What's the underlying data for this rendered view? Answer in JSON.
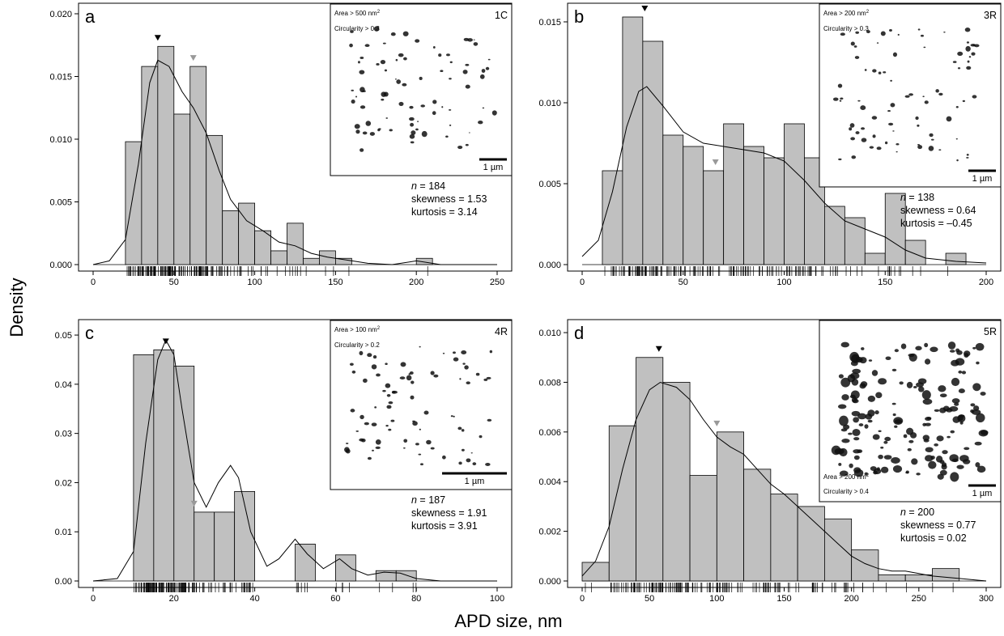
{
  "figure": {
    "ylabel": "Density",
    "xlabel": "APD size, nm"
  },
  "chart_data": [
    {
      "type": "bar",
      "panel": "a",
      "sample": "1C",
      "bin_width": 10,
      "bin_start": 20,
      "values": [
        0.0098,
        0.0158,
        0.0174,
        0.012,
        0.0158,
        0.0103,
        0.0043,
        0.0049,
        0.0027,
        0.0011,
        0.0033,
        0.0005,
        0.0011,
        0.0005,
        0.0,
        0.0,
        0.0,
        0.0,
        0.0005
      ],
      "xlim": [
        0,
        250
      ],
      "xticks": [
        0,
        50,
        100,
        150,
        200,
        250
      ],
      "ylim": [
        0,
        0.02
      ],
      "yticks": [
        "0.000",
        "0.005",
        "0.010",
        "0.015",
        "0.020"
      ],
      "mode": 40,
      "mean": 62,
      "density_curve": [
        [
          0,
          0
        ],
        [
          10,
          0.0003
        ],
        [
          20,
          0.002
        ],
        [
          28,
          0.008
        ],
        [
          35,
          0.0145
        ],
        [
          40,
          0.0163
        ],
        [
          47,
          0.0158
        ],
        [
          55,
          0.0138
        ],
        [
          62,
          0.0125
        ],
        [
          70,
          0.0105
        ],
        [
          78,
          0.0075
        ],
        [
          85,
          0.0052
        ],
        [
          95,
          0.0035
        ],
        [
          105,
          0.0027
        ],
        [
          115,
          0.0018
        ],
        [
          125,
          0.0015
        ],
        [
          135,
          0.0009
        ],
        [
          145,
          0.0006
        ],
        [
          155,
          0.0004
        ],
        [
          170,
          0.0001
        ],
        [
          185,
          0.0
        ],
        [
          200,
          0.0003
        ],
        [
          205,
          0.0002
        ],
        [
          215,
          0.0
        ],
        [
          250,
          0.0
        ]
      ],
      "inset": {
        "filter1": "Area > 500 nm",
        "filter1_unit": "2",
        "filter2": "Circularity > 0.3",
        "scale": "1 µm"
      },
      "stats": {
        "n_label": "n",
        "n_value": " = 184",
        "skewness": "skewness = 1.53",
        "kurtosis": "kurtosis = 3.14"
      }
    },
    {
      "type": "bar",
      "panel": "b",
      "sample": "3R",
      "bin_width": 10,
      "bin_start": 10,
      "values": [
        0.0058,
        0.0153,
        0.0138,
        0.008,
        0.0073,
        0.0058,
        0.0087,
        0.0073,
        0.0066,
        0.0087,
        0.0066,
        0.0036,
        0.0029,
        0.0007,
        0.0044,
        0.0015,
        0.0,
        0.0007
      ],
      "xlim": [
        0,
        200
      ],
      "xticks": [
        0,
        50,
        100,
        150,
        200
      ],
      "ylim": [
        0,
        0.0155
      ],
      "yticks": [
        "0.000",
        "0.005",
        "0.010",
        "0.015"
      ],
      "mode": 31,
      "mean": 66,
      "density_curve": [
        [
          0,
          0.0005
        ],
        [
          8,
          0.0015
        ],
        [
          15,
          0.0045
        ],
        [
          22,
          0.0085
        ],
        [
          28,
          0.0107
        ],
        [
          32,
          0.011
        ],
        [
          40,
          0.0098
        ],
        [
          50,
          0.0082
        ],
        [
          60,
          0.0075
        ],
        [
          70,
          0.0073
        ],
        [
          80,
          0.0071
        ],
        [
          90,
          0.0069
        ],
        [
          100,
          0.0064
        ],
        [
          110,
          0.0052
        ],
        [
          120,
          0.0038
        ],
        [
          130,
          0.0027
        ],
        [
          140,
          0.0022
        ],
        [
          150,
          0.0017
        ],
        [
          160,
          0.0009
        ],
        [
          170,
          0.0004
        ],
        [
          185,
          0.0002
        ],
        [
          200,
          0.0001
        ]
      ],
      "inset": {
        "filter1": "Area > 200 nm",
        "filter1_unit": "2",
        "filter2": "Circularity > 0.3",
        "scale": "1 µm"
      },
      "stats": {
        "n_label": "n",
        "n_value": " = 138",
        "skewness": "skewness = 0.64",
        "kurtosis": "kurtosis = –0.45"
      }
    },
    {
      "type": "bar",
      "panel": "c",
      "sample": "4R",
      "bin_width": 5,
      "bin_start": 10,
      "values": [
        0.046,
        0.047,
        0.0437,
        0.014,
        0.014,
        0.0182,
        0.0,
        0.0,
        0.0075,
        0.0,
        0.0053,
        0.0,
        0.0021,
        0.0021
      ],
      "xlim": [
        0,
        100
      ],
      "xticks": [
        0,
        20,
        40,
        60,
        80,
        100
      ],
      "ylim": [
        0,
        0.051
      ],
      "yticks": [
        "0.00",
        "0.01",
        "0.02",
        "0.03",
        "0.04",
        "0.05"
      ],
      "mode": 18,
      "mean": 25,
      "density_curve": [
        [
          0,
          0
        ],
        [
          6,
          0.0005
        ],
        [
          10,
          0.006
        ],
        [
          13,
          0.028
        ],
        [
          16,
          0.045
        ],
        [
          18,
          0.049
        ],
        [
          20,
          0.046
        ],
        [
          22,
          0.035
        ],
        [
          25,
          0.02
        ],
        [
          28,
          0.015
        ],
        [
          31,
          0.02
        ],
        [
          34,
          0.0235
        ],
        [
          36,
          0.021
        ],
        [
          39,
          0.01
        ],
        [
          43,
          0.003
        ],
        [
          46,
          0.0045
        ],
        [
          50,
          0.0085
        ],
        [
          53,
          0.0055
        ],
        [
          57,
          0.0025
        ],
        [
          61,
          0.0045
        ],
        [
          64,
          0.0025
        ],
        [
          68,
          0.0012
        ],
        [
          72,
          0.0018
        ],
        [
          76,
          0.0016
        ],
        [
          80,
          0.0005
        ],
        [
          86,
          0.0
        ],
        [
          100,
          0.0
        ]
      ],
      "inset": {
        "filter1": "Area > 100 nm",
        "filter1_unit": "2",
        "filter2": "Circularity > 0.2",
        "scale": "1 µm"
      },
      "stats": {
        "n_label": "n",
        "n_value": " = 187",
        "skewness": "skewness = 1.91",
        "kurtosis": "kurtosis = 3.91"
      }
    },
    {
      "type": "bar",
      "panel": "d",
      "sample": "5R",
      "bin_width": 20,
      "bin_start": 0,
      "values": [
        0.00075,
        0.00625,
        0.009,
        0.008,
        0.00425,
        0.006,
        0.0045,
        0.0035,
        0.003,
        0.0025,
        0.00125,
        0.00025,
        0.00025,
        0.0005
      ],
      "xlim": [
        0,
        300
      ],
      "xticks": [
        0,
        50,
        100,
        150,
        200,
        250,
        300
      ],
      "ylim": [
        0,
        0.0101
      ],
      "yticks": [
        "0.000",
        "0.002",
        "0.004",
        "0.006",
        "0.008",
        "0.010"
      ],
      "mode": 57,
      "mean": 100,
      "density_curve": [
        [
          0,
          0.0002
        ],
        [
          10,
          0.0008
        ],
        [
          20,
          0.0022
        ],
        [
          30,
          0.0045
        ],
        [
          40,
          0.0065
        ],
        [
          50,
          0.0077
        ],
        [
          58,
          0.008
        ],
        [
          70,
          0.0078
        ],
        [
          80,
          0.0073
        ],
        [
          90,
          0.0065
        ],
        [
          100,
          0.0058
        ],
        [
          110,
          0.0054
        ],
        [
          120,
          0.0051
        ],
        [
          130,
          0.0045
        ],
        [
          140,
          0.0039
        ],
        [
          150,
          0.0035
        ],
        [
          160,
          0.003
        ],
        [
          170,
          0.0025
        ],
        [
          180,
          0.002
        ],
        [
          190,
          0.0015
        ],
        [
          200,
          0.001
        ],
        [
          210,
          0.0007
        ],
        [
          220,
          0.0005
        ],
        [
          230,
          0.0004
        ],
        [
          240,
          0.0004
        ],
        [
          250,
          0.0003
        ],
        [
          260,
          0.0002
        ],
        [
          280,
          0.0001
        ],
        [
          300,
          0.0
        ]
      ],
      "inset": {
        "filter1": "Area > 200 nm",
        "filter1_unit": "2",
        "filter2": "Circularity > 0.4",
        "scale": "1 µm"
      },
      "stats": {
        "n_label": "n",
        "n_value": " = 200",
        "skewness": "skewness = 0.77",
        "kurtosis": "kurtosis = 0.02"
      }
    }
  ]
}
